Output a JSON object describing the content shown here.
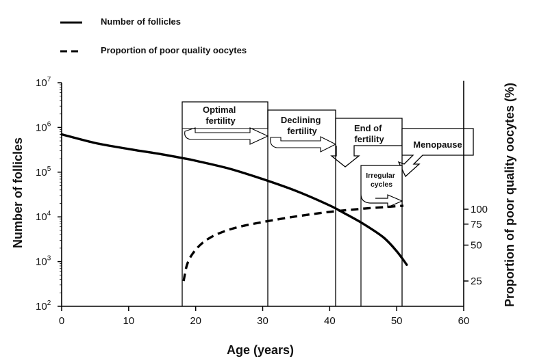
{
  "chart_data": {
    "type": "line",
    "legend": [
      {
        "label": "Number of follicles",
        "style": "solid"
      },
      {
        "label": "Proportion of poor quality oocytes",
        "style": "dashed"
      }
    ],
    "xlabel": "Age (years)",
    "ylabel_left": "Number of follicles",
    "ylabel_right": "Proportion of poor quality oocytes (%)",
    "xlim": [
      0,
      60
    ],
    "x_ticks": [
      "0",
      "10",
      "20",
      "30",
      "40",
      "50",
      "60"
    ],
    "ylim_left_log10": [
      2,
      7
    ],
    "y_left_ticks": [
      {
        "base": "10",
        "exp": "2"
      },
      {
        "base": "10",
        "exp": "3"
      },
      {
        "base": "10",
        "exp": "4"
      },
      {
        "base": "10",
        "exp": "5"
      },
      {
        "base": "10",
        "exp": "6"
      },
      {
        "base": "10",
        "exp": "7"
      }
    ],
    "y_right_ticks": [
      "25",
      "50",
      "75",
      "100"
    ],
    "y_right_scale": "log",
    "series": [
      {
        "name": "Number of follicles",
        "axis": "left",
        "style": "solid",
        "x": [
          0,
          5,
          10,
          15,
          18.5,
          20,
          25,
          30,
          35,
          40,
          42,
          45,
          48,
          50,
          51.5
        ],
        "y": [
          700000,
          450000,
          330000,
          250000,
          200000,
          180000,
          120000,
          70000,
          38000,
          18000,
          12500,
          7000,
          3500,
          1700,
          850
        ]
      },
      {
        "name": "Proportion of poor quality oocytes",
        "axis": "right",
        "style": "dashed",
        "x": [
          18.2,
          18.7,
          19.5,
          21,
          23,
          26,
          30,
          35,
          40,
          45,
          50,
          51
        ],
        "y": [
          25,
          34,
          42,
          52,
          61,
          70,
          78,
          87,
          95,
          101,
          106,
          107
        ]
      }
    ],
    "phases": [
      {
        "label": [
          "Optimal",
          "fertility"
        ],
        "x_start": 18.2,
        "x_end": 31
      },
      {
        "label": [
          "Declining",
          "fertility"
        ],
        "x_start": 31,
        "x_end": 41
      },
      {
        "label": [
          "End of",
          "fertility"
        ],
        "x_start": 41,
        "x_end": 51
      },
      {
        "label": [
          "Irregular",
          "cycles"
        ],
        "x_start": 44.8,
        "x_end": 51
      },
      {
        "label": [
          "Menopause"
        ],
        "x_start": 51,
        "x_end": 61
      }
    ]
  }
}
